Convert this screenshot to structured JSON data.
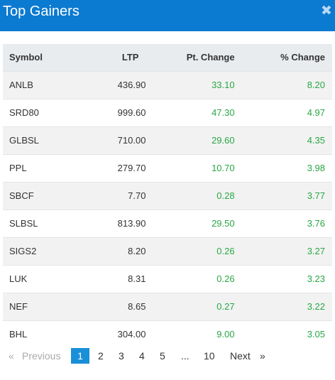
{
  "header": {
    "title": "Top Gainers",
    "close_glyph": "✖"
  },
  "table": {
    "columns": [
      "Symbol",
      "LTP",
      "Pt. Change",
      "% Change"
    ],
    "rows": [
      [
        "ANLB",
        "436.90",
        "33.10",
        "8.20"
      ],
      [
        "SRD80",
        "999.60",
        "47.30",
        "4.97"
      ],
      [
        "GLBSL",
        "710.00",
        "29.60",
        "4.35"
      ],
      [
        "PPL",
        "279.70",
        "10.70",
        "3.98"
      ],
      [
        "SBCF",
        "7.70",
        "0.28",
        "3.77"
      ],
      [
        "SLBSL",
        "813.90",
        "29.50",
        "3.76"
      ],
      [
        "SIGS2",
        "8.20",
        "0.26",
        "3.27"
      ],
      [
        "LUK",
        "8.31",
        "0.26",
        "3.23"
      ],
      [
        "NEF",
        "8.65",
        "0.27",
        "3.22"
      ],
      [
        "BHL",
        "304.00",
        "9.00",
        "3.05"
      ]
    ]
  },
  "pagination": {
    "prev_glyph": "«",
    "prev_label": "Previous",
    "pages": [
      "1",
      "2",
      "3",
      "4",
      "5",
      "...",
      "10"
    ],
    "next_label": "Next",
    "next_glyph": "»",
    "active_page": "1"
  },
  "colors": {
    "header_bg": "#0b7ad1",
    "positive": "#28a745",
    "active_page_bg": "#1a8fd9"
  }
}
